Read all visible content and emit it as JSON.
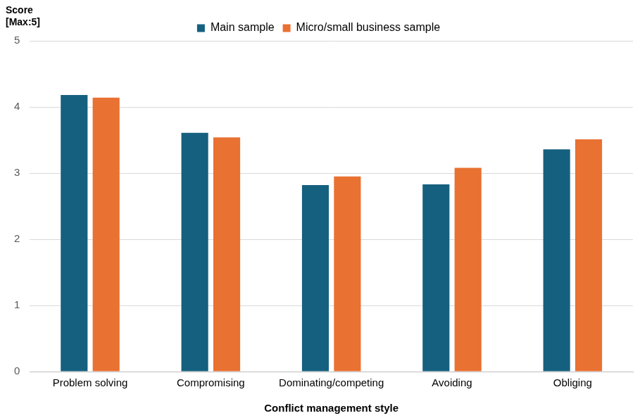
{
  "chart_data": {
    "type": "bar",
    "y_label": "Score [Max:5]",
    "x_label": "Conflict management style",
    "categories": [
      "Problem solving",
      "Compromising",
      "Dominating/competing",
      "Avoiding",
      "Obliging"
    ],
    "series": [
      {
        "name": "Main sample",
        "color": "#15607f",
        "values": [
          4.18,
          3.61,
          2.82,
          2.83,
          3.36
        ]
      },
      {
        "name": "Micro/small business sample",
        "color": "#e97132",
        "values": [
          4.14,
          3.54,
          2.95,
          3.08,
          3.51
        ]
      }
    ],
    "ylim": [
      0,
      5
    ],
    "yticks": [
      0,
      1,
      2,
      3,
      4,
      5
    ],
    "grid": true,
    "legend": "top"
  }
}
